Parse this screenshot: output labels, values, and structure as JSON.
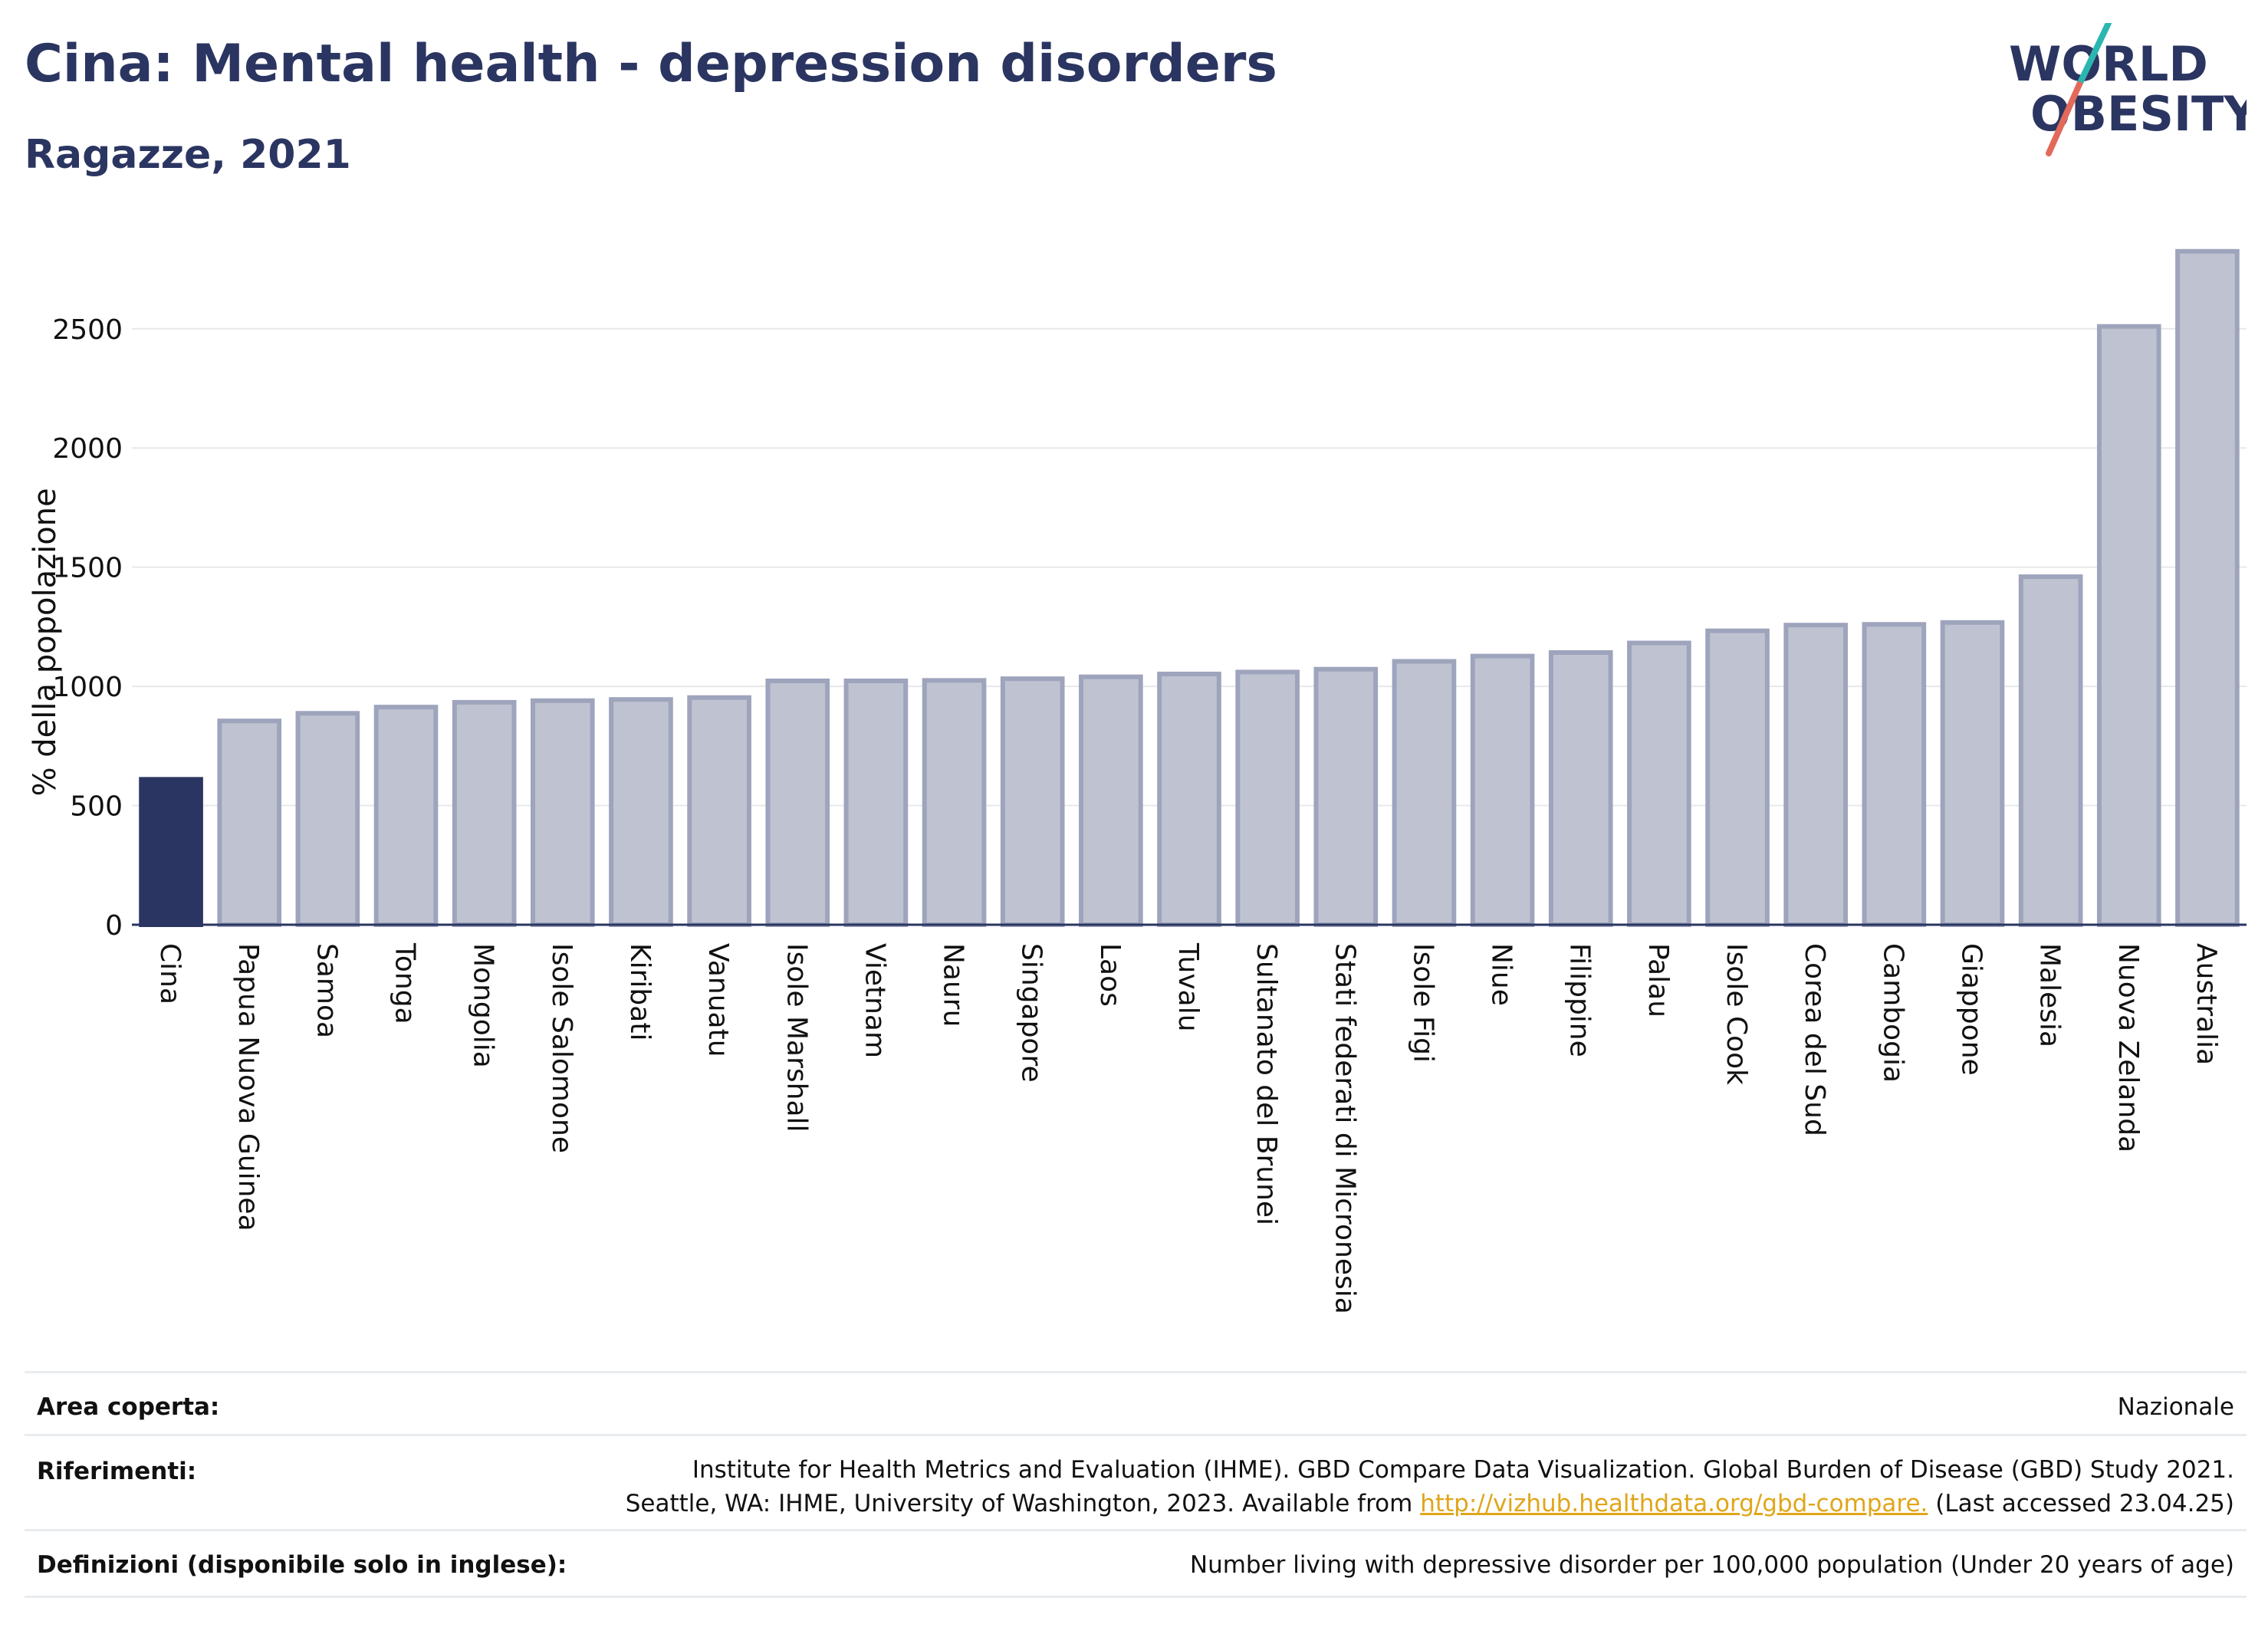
{
  "header": {
    "title": "Cina: Mental health - depression disorders",
    "subtitle": "Ragazze, 2021"
  },
  "logo": {
    "line1": "WORLD",
    "line2": "OBESITY",
    "colors": {
      "text": "#2b3561",
      "slash_top": "#2bb6b0",
      "slash_bottom": "#e26a5a"
    }
  },
  "colors": {
    "highlight_bar": "#2b3561",
    "other_bar_fill": "#bfc3d1",
    "other_bar_stroke": "#9ea4bc",
    "grid": "#e6e8ec",
    "axis": "#2b3561"
  },
  "chart_data": {
    "type": "bar",
    "title": "Cina: Mental health - depression disorders",
    "subtitle": "Ragazze, 2021",
    "xlabel": "",
    "ylabel": "% della popolazione",
    "ylim": [
      0,
      2850
    ],
    "yticks": [
      0,
      500,
      1000,
      1500,
      2000,
      2500
    ],
    "grid": true,
    "highlight": "Cina",
    "categories": [
      "Cina",
      "Papua Nuova Guinea",
      "Samoa",
      "Tonga",
      "Mongolia",
      "Isole Salomone",
      "Kiribati",
      "Vanuatu",
      "Isole Marshall",
      "Vietnam",
      "Nauru",
      "Singapore",
      "Laos",
      "Tuvalu",
      "Sultanato del Brunei",
      "Stati federati di Micronesia",
      "Isole Figi",
      "Niue",
      "Filippine",
      "Palau",
      "Isole Cook",
      "Corea del Sud",
      "Cambogia",
      "Giappone",
      "Malesia",
      "Nuova Zelanda",
      "Australia"
    ],
    "values": [
      610,
      855,
      887,
      913,
      933,
      940,
      945,
      953,
      1023,
      1023,
      1025,
      1032,
      1040,
      1052,
      1060,
      1072,
      1105,
      1127,
      1142,
      1182,
      1233,
      1257,
      1260,
      1268,
      1460,
      2510,
      2825
    ]
  },
  "footer": {
    "rows": [
      {
        "key": "Area coperta:",
        "lines": [
          "Nazionale"
        ]
      },
      {
        "key": "Riferimenti:",
        "lines": [
          "Institute for Health Metrics and Evaluation (IHME). GBD Compare Data Visualization. Global Burden of Disease (GBD) Study 2021.",
          "Seattle, WA: IHME, University of Washington, 2023. Available from"
        ],
        "link": "http://vizhub.healthdata.org/gbd-compare.",
        "after_link": " (Last accessed 23.04.25)"
      },
      {
        "key": "Definizioni (disponibile solo in inglese):",
        "lines": [
          "Number living with depressive disorder per 100,000 population (Under 20 years of age)"
        ]
      }
    ]
  }
}
